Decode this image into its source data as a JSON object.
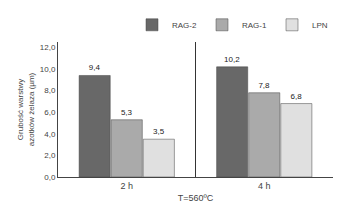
{
  "chart_data": {
    "type": "bar",
    "categories": [
      "2 h",
      "4 h"
    ],
    "series": [
      {
        "name": "RAG-2",
        "color": "#686868",
        "values": [
          9.4,
          10.2
        ],
        "value_labels": [
          "9,4",
          "10,2"
        ]
      },
      {
        "name": "RAG-1",
        "color": "#aaaaaa",
        "values": [
          5.3,
          7.8
        ],
        "value_labels": [
          "5,3",
          "7,8"
        ]
      },
      {
        "name": "LPN",
        "color": "#e0e0e0",
        "values": [
          3.5,
          6.8
        ],
        "value_labels": [
          "3,5",
          "6,8"
        ]
      }
    ],
    "xlabel": "T=560ºC",
    "ylabel": "Grubość warstwy\nazotków żelaza (µm)",
    "ylim": [
      0,
      12.5
    ],
    "yticks": [
      {
        "value": 0,
        "label": "0,0"
      },
      {
        "value": 2,
        "label": "2,0"
      },
      {
        "value": 4,
        "label": "4,0"
      },
      {
        "value": 6,
        "label": "6,0"
      },
      {
        "value": 8,
        "label": "8,0"
      },
      {
        "value": 10,
        "label": "10,0"
      },
      {
        "value": 12,
        "label": "12,0"
      }
    ],
    "data_labels": true,
    "legend": "upper right",
    "grid": false
  }
}
